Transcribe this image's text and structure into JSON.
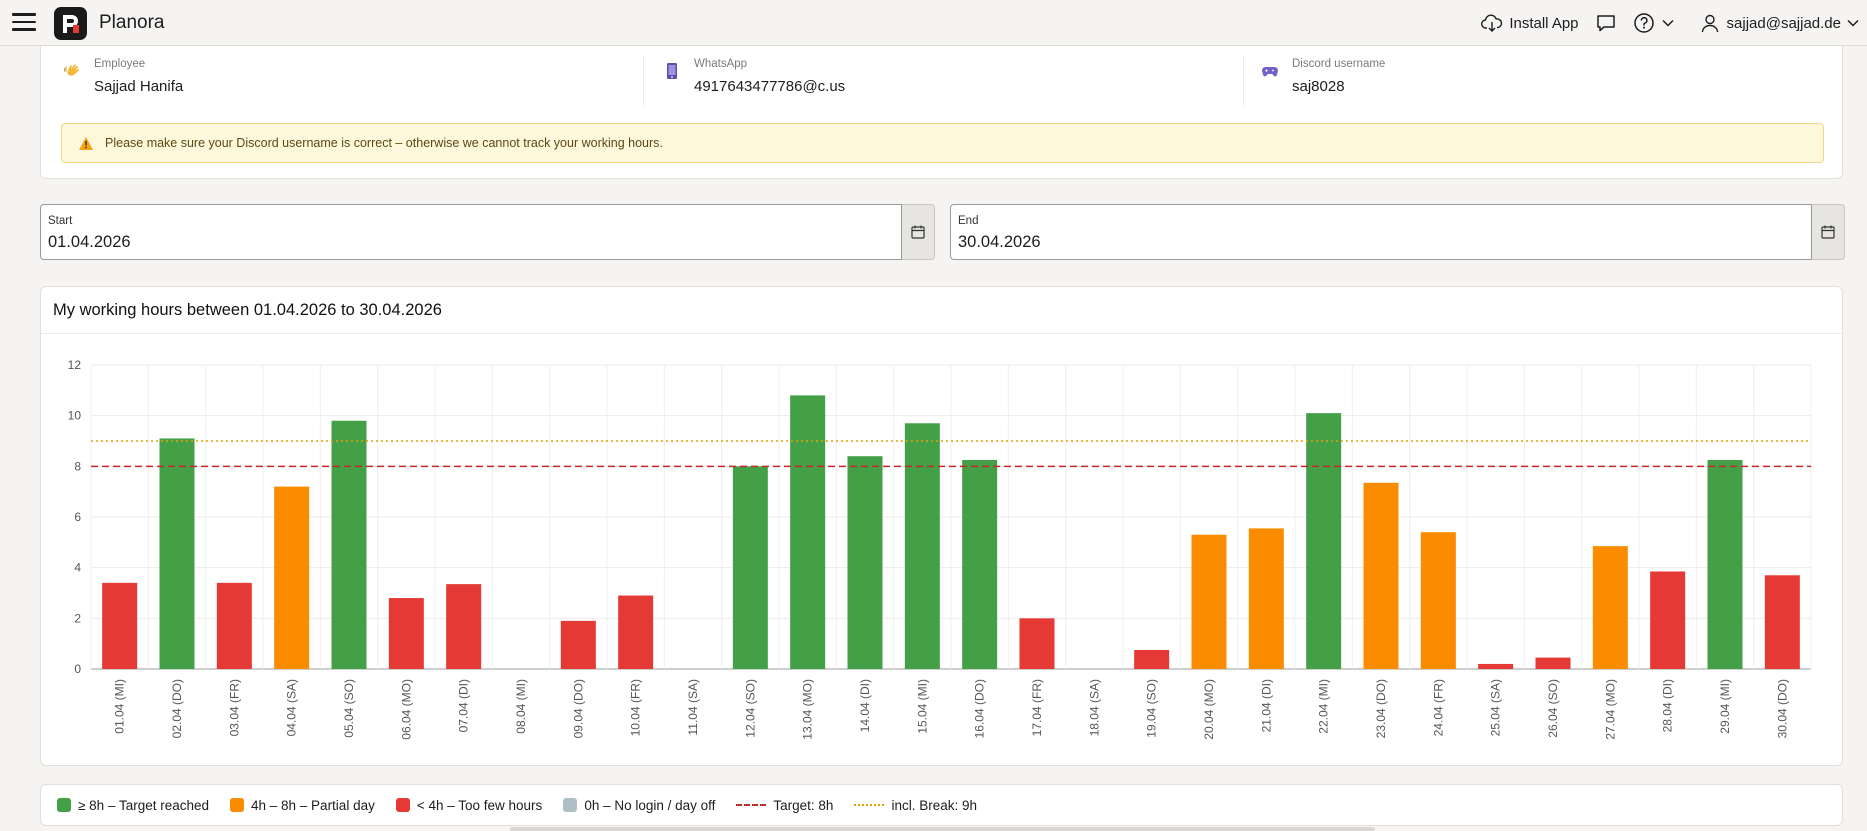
{
  "app": {
    "title": "Planora"
  },
  "topbar": {
    "install_label": "Install App",
    "user_email": "sajjad@sajjad.de"
  },
  "icons": {
    "menu": "hamburger-icon",
    "logo": "planora-logo",
    "install": "cloud-download-icon",
    "chat": "chat-bubble-icon",
    "help": "help-circle-icon",
    "user": "user-icon"
  },
  "info": {
    "employee": {
      "label": "Employee",
      "value": "Sajjad Hanifa",
      "icon": "waving-hand-icon"
    },
    "whatsapp": {
      "label": "WhatsApp",
      "value": "4917643477786@c.us",
      "icon": "phone-icon"
    },
    "discord": {
      "label": "Discord username",
      "value": "saj8028",
      "icon": "gamepad-icon"
    }
  },
  "warning": {
    "text": "Please make sure your Discord username is correct – otherwise we cannot track your working hours."
  },
  "range": {
    "start_label": "Start",
    "start_value": "01.04.2026",
    "end_label": "End",
    "end_value": "30.04.2026"
  },
  "chart_title": "My working hours between 01.04.2026 to 30.04.2026",
  "colors": {
    "target_reached": "#43a047",
    "partial": "#fb8c00",
    "too_few": "#e53935",
    "none": "#b0bec5",
    "target_line": "#c62828",
    "break_line": "#e0a100"
  },
  "chart_data": {
    "type": "bar",
    "title": "My working hours between 01.04.2026 to 30.04.2026",
    "xlabel": "",
    "ylabel": "",
    "ylim": [
      0,
      12
    ],
    "yticks": [
      "0",
      "2",
      "4",
      "6",
      "8",
      "10",
      "12"
    ],
    "categories": [
      "01.04 (MI)",
      "02.04 (DO)",
      "03.04 (FR)",
      "04.04 (SA)",
      "05.04 (SO)",
      "06.04 (MO)",
      "07.04 (DI)",
      "08.04 (MI)",
      "09.04 (DO)",
      "10.04 (FR)",
      "11.04 (SA)",
      "12.04 (SO)",
      "13.04 (MO)",
      "14.04 (DI)",
      "15.04 (MI)",
      "16.04 (DO)",
      "17.04 (FR)",
      "18.04 (SA)",
      "19.04 (SO)",
      "20.04 (MO)",
      "21.04 (DI)",
      "22.04 (MI)",
      "23.04 (DO)",
      "24.04 (FR)",
      "25.04 (SA)",
      "26.04 (SO)",
      "27.04 (MO)",
      "28.04 (DI)",
      "29.04 (MI)",
      "30.04 (DO)"
    ],
    "values": [
      3.4,
      9.1,
      3.4,
      7.2,
      9.8,
      2.8,
      3.35,
      0,
      1.9,
      2.9,
      0,
      8.0,
      10.8,
      8.4,
      9.7,
      8.25,
      2.0,
      0,
      0.75,
      5.3,
      5.55,
      10.1,
      7.35,
      5.4,
      0.2,
      0.45,
      4.85,
      3.85,
      8.25,
      3.7
    ],
    "reference_lines": [
      {
        "name": "Target: 8h",
        "value": 8,
        "style": "dashed"
      },
      {
        "name": "incl. Break: 9h",
        "value": 9,
        "style": "dotted"
      }
    ],
    "grid": true
  },
  "legend": [
    {
      "label": "≥ 8h – Target reached",
      "kind": "box",
      "color": "#43a047"
    },
    {
      "label": "4h – 8h – Partial day",
      "kind": "box",
      "color": "#fb8c00"
    },
    {
      "label": "< 4h – Too few hours",
      "kind": "box",
      "color": "#e53935"
    },
    {
      "label": "0h – No login / day off",
      "kind": "box",
      "color": "#b0bec5"
    },
    {
      "label": "Target: 8h",
      "kind": "dashed",
      "color": "#c62828"
    },
    {
      "label": "incl. Break: 9h",
      "kind": "dotted",
      "color": "#e0a100"
    }
  ]
}
